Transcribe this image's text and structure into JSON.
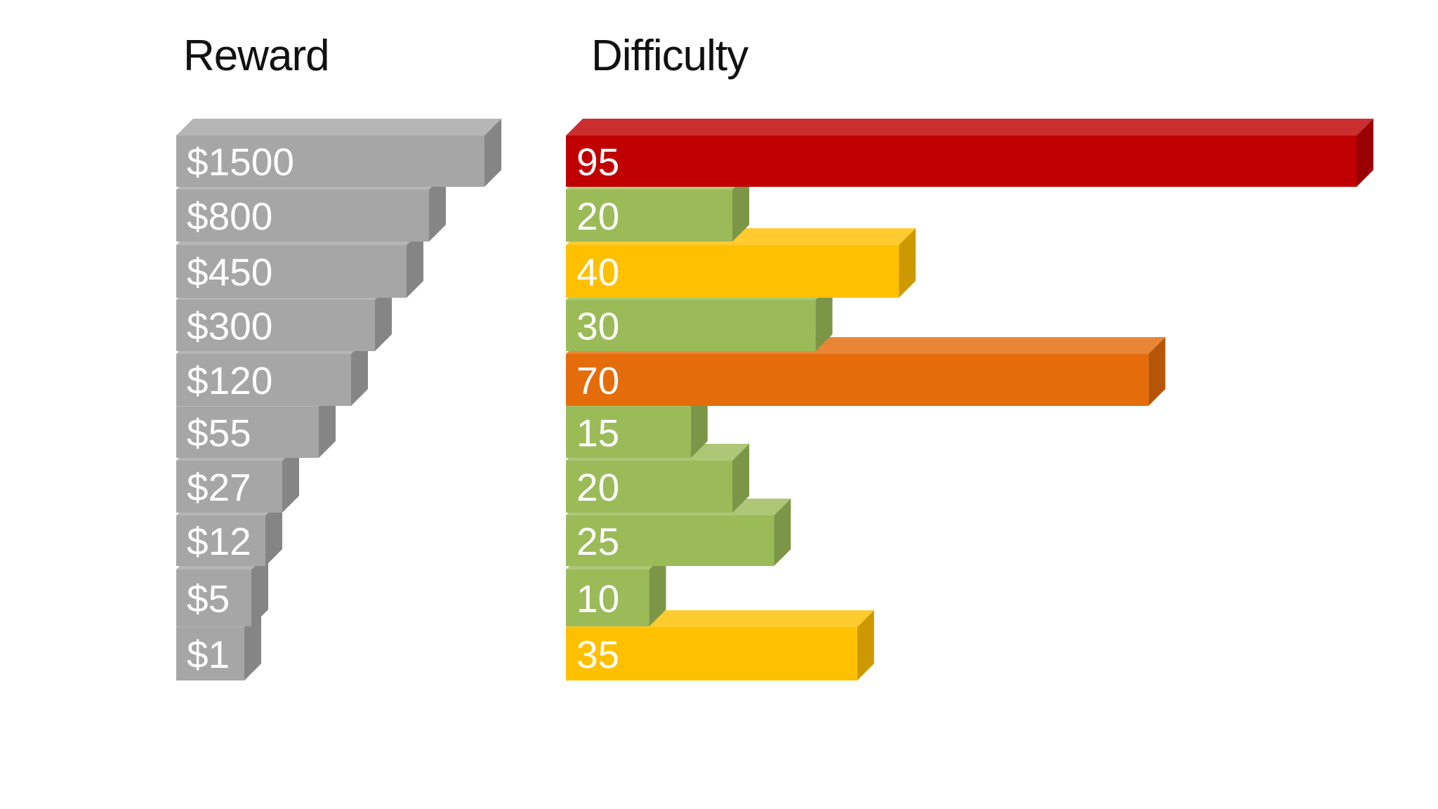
{
  "colors": {
    "reward": "#a6a6a6",
    "red": "#c00000",
    "green": "#9bbb59",
    "yellow": "#ffc000",
    "orange": "#e46c0a"
  },
  "chart_data": [
    {
      "type": "bar",
      "orientation": "horizontal",
      "style": "3d",
      "title": "Reward",
      "categories": [
        "$1500",
        "$800",
        "$450",
        "$300",
        "$120",
        "$55",
        "$27",
        "$12",
        "$5",
        "$1"
      ],
      "values": [
        1500,
        800,
        450,
        300,
        120,
        55,
        27,
        12,
        5,
        1
      ],
      "bar_color": "gray"
    },
    {
      "type": "bar",
      "orientation": "horizontal",
      "style": "3d",
      "title": "Difficulty",
      "categories": [
        "95",
        "20",
        "40",
        "30",
        "70",
        "15",
        "20",
        "25",
        "10",
        "35"
      ],
      "values": [
        95,
        20,
        40,
        30,
        70,
        15,
        20,
        25,
        10,
        35
      ],
      "bar_colors": [
        "red",
        "green",
        "yellow",
        "green",
        "orange",
        "green",
        "green",
        "green",
        "green",
        "yellow"
      ],
      "xlim": [
        0,
        95
      ]
    }
  ]
}
